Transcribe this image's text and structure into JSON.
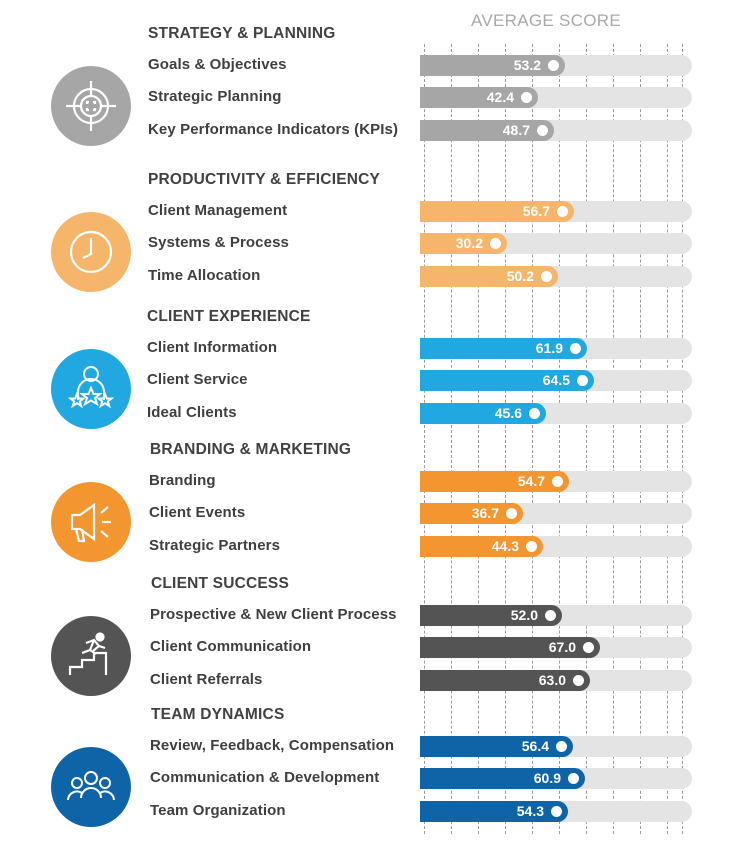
{
  "header": {
    "title": "AVERAGE SCORE"
  },
  "chart_data": {
    "type": "bar",
    "orientation": "horizontal",
    "title": "AVERAGE SCORE",
    "xlim": [
      0,
      100
    ],
    "grid": true,
    "groups": [
      {
        "name": "STRATEGY & PLANNING",
        "icon": "target-crosshair-icon",
        "color": "#a6a6a6",
        "items": [
          {
            "label": "Goals & Objectives",
            "value": 53.2,
            "display": "53.2"
          },
          {
            "label": "Strategic Planning",
            "value": 42.4,
            "display": "42.4"
          },
          {
            "label": "Key Performance Indicators (KPIs)",
            "value": 48.7,
            "display": "48.7"
          }
        ]
      },
      {
        "name": "PRODUCTIVITY & EFFICIENCY",
        "icon": "clock-icon",
        "color": "#f5b66c",
        "items": [
          {
            "label": "Client Management",
            "value": 56.7,
            "display": "56.7"
          },
          {
            "label": "Systems & Process",
            "value": 30.2,
            "display": "30.2"
          },
          {
            "label": "Time Allocation",
            "value": 50.2,
            "display": "50.2"
          }
        ]
      },
      {
        "name": "CLIENT EXPERIENCE",
        "icon": "person-stars-icon",
        "color": "#22a8e0",
        "items": [
          {
            "label": "Client Information",
            "value": 61.9,
            "display": "61.9"
          },
          {
            "label": "Client Service",
            "value": 64.5,
            "display": "64.5"
          },
          {
            "label": "Ideal Clients",
            "value": 45.6,
            "display": "45.6"
          }
        ]
      },
      {
        "name": "BRANDING & MARKETING",
        "icon": "megaphone-icon",
        "color": "#f3962f",
        "items": [
          {
            "label": "Branding",
            "value": 54.7,
            "display": "54.7"
          },
          {
            "label": "Client Events",
            "value": 36.7,
            "display": "36.7"
          },
          {
            "label": "Strategic Partners",
            "value": 44.3,
            "display": "44.3"
          }
        ]
      },
      {
        "name": "CLIENT SUCCESS",
        "icon": "runner-stairs-icon",
        "color": "#545454",
        "items": [
          {
            "label": "Prospective & New Client Process",
            "value": 52.0,
            "display": "52.0"
          },
          {
            "label": "Client Communication",
            "value": 67.0,
            "display": "67.0"
          },
          {
            "label": "Client Referrals",
            "value": 63.0,
            "display": "63.0"
          }
        ]
      },
      {
        "name": "TEAM DYNAMICS",
        "icon": "team-people-icon",
        "color": "#0f64a8",
        "items": [
          {
            "label": "Review, Feedback, Compensation",
            "value": 56.4,
            "display": "56.4"
          },
          {
            "label": "Communication & Development",
            "value": 60.9,
            "display": "60.9"
          },
          {
            "label": "Team Organization",
            "value": 54.3,
            "display": "54.3"
          }
        ]
      }
    ]
  }
}
